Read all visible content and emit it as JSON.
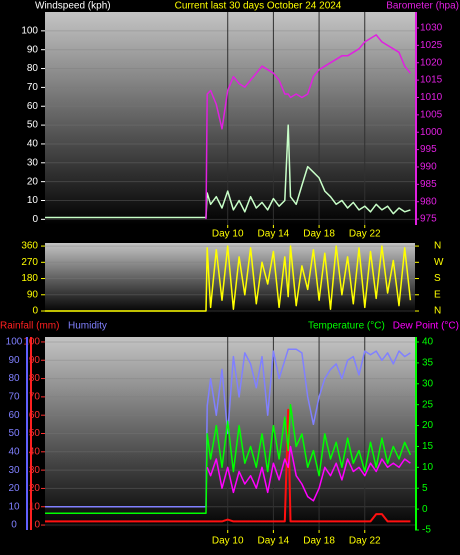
{
  "chart_data": [
    {
      "type": "line",
      "title": "Current last 30 days October 24 2024",
      "x": [
        -6,
        8.1,
        8.2,
        8.5,
        9,
        9.5,
        10,
        10.5,
        11,
        11.5,
        12,
        12.5,
        13,
        13.5,
        14,
        14.5,
        15,
        15.3,
        15.5,
        16,
        16.5,
        17,
        17.5,
        18,
        18.5,
        19,
        19.5,
        20,
        20.5,
        21,
        21.5,
        22,
        22.5,
        23,
        23.5,
        24,
        24.5,
        25,
        25.5,
        26
      ],
      "xlim": [
        -6,
        26.4
      ],
      "xticks": [
        {
          "value": 10,
          "label": "Day 10"
        },
        {
          "value": 14,
          "label": "Day 14"
        },
        {
          "value": 18,
          "label": "Day 18"
        },
        {
          "value": 22,
          "label": "Day 22"
        }
      ],
      "ylim": [
        -3,
        110
      ],
      "yticks": [
        0,
        10,
        20,
        30,
        40,
        50,
        60,
        70,
        80,
        90,
        100
      ],
      "y2lim": [
        973.3,
        1034.6
      ],
      "y2ticks": [
        975,
        980,
        985,
        990,
        995,
        1000,
        1005,
        1010,
        1015,
        1020,
        1025,
        1030
      ],
      "grid": true,
      "series": [
        {
          "name": "Windspeed (kph)",
          "color": "#c8ffc8",
          "values": [
            1,
            1,
            14,
            8,
            12,
            6,
            15,
            5,
            10,
            4,
            12,
            6,
            9,
            5,
            11,
            7,
            10,
            50,
            12,
            8,
            18,
            28,
            25,
            22,
            15,
            12,
            8,
            10,
            6,
            9,
            5,
            7,
            4,
            8,
            5,
            7,
            3,
            6,
            4,
            5
          ]
        },
        {
          "name": "Barometer (hpa)",
          "color": "#e020e0",
          "axis": "y2",
          "values": [
            null,
            975,
            1011,
            1012,
            1008,
            1001,
            1012,
            1016,
            1014,
            1013,
            1015,
            1017,
            1019,
            1018,
            1017,
            1015,
            1011,
            1011,
            1010,
            1011,
            1010,
            1011,
            1016,
            1018,
            1019,
            1020,
            1021,
            1022,
            1022,
            1023,
            1024,
            1026,
            1027,
            1028,
            1026,
            1025,
            1024,
            1023,
            1019,
            1017
          ]
        }
      ]
    },
    {
      "type": "line",
      "x": [
        -6,
        8.1,
        8.2,
        8.5,
        9,
        9.5,
        10,
        10.5,
        11,
        11.5,
        12,
        12.5,
        13,
        13.5,
        14,
        14.5,
        15,
        15.3,
        15.5,
        16,
        16.5,
        17,
        17.5,
        18,
        18.5,
        19,
        19.5,
        20,
        20.5,
        21,
        21.5,
        22,
        22.5,
        23,
        23.5,
        24,
        24.5,
        25,
        25.5,
        26
      ],
      "xlim": [
        -6,
        26.4
      ],
      "ylim": [
        -11,
        377
      ],
      "yticks": [
        0,
        90,
        180,
        270,
        360
      ],
      "y2lim": [
        -11,
        377
      ],
      "y2ticks": [
        {
          "value": 360,
          "label": "N"
        },
        {
          "value": 270,
          "label": "W"
        },
        {
          "value": 180,
          "label": "S"
        },
        {
          "value": 90,
          "label": "E"
        },
        {
          "value": 0,
          "label": "N"
        }
      ],
      "grid": true,
      "series": [
        {
          "color": "#ffff00",
          "values": [
            0,
            0,
            350,
            20,
            340,
            60,
            360,
            10,
            300,
            90,
            350,
            40,
            270,
            150,
            330,
            20,
            300,
            80,
            360,
            30,
            250,
            120,
            340,
            60,
            320,
            10,
            360,
            90,
            300,
            40,
            350,
            20,
            330,
            70,
            360,
            100,
            280,
            30,
            350,
            60
          ]
        }
      ]
    },
    {
      "type": "line",
      "x": [
        -6,
        8.1,
        8.2,
        8.5,
        9,
        9.5,
        10,
        10.5,
        11,
        11.5,
        12,
        12.5,
        13,
        13.5,
        14,
        14.5,
        15,
        15.3,
        15.5,
        16,
        16.5,
        17,
        17.5,
        18,
        18.5,
        19,
        19.5,
        20,
        20.5,
        21,
        21.5,
        22,
        22.5,
        23,
        23.5,
        24,
        24.5,
        25,
        25.5,
        26
      ],
      "xlim": [
        -6,
        26.4
      ],
      "xticks": [
        {
          "value": 10,
          "label": "Day 10"
        },
        {
          "value": 14,
          "label": "Day 14"
        },
        {
          "value": 18,
          "label": "Day 18"
        },
        {
          "value": 22,
          "label": "Day 22"
        }
      ],
      "ylim": [
        -2.7,
        102.7
      ],
      "yticks": [
        0,
        10,
        20,
        30,
        40,
        50,
        60,
        70,
        80,
        90,
        100
      ],
      "y2lim": [
        -5,
        41.2
      ],
      "y2ticks": [
        -5,
        0,
        5,
        10,
        15,
        20,
        25,
        30,
        35,
        40
      ],
      "grid": true,
      "series": [
        {
          "name": "Rainfall (mm)",
          "color": "#ff1010",
          "values": [
            2,
            2,
            2,
            2,
            2,
            2,
            3,
            2,
            2,
            2,
            2,
            2,
            2,
            2,
            2,
            2,
            2,
            63,
            2,
            2,
            2,
            2,
            2,
            2,
            2,
            2,
            2,
            2,
            2,
            2,
            2,
            2,
            2,
            6,
            6,
            2,
            2,
            2,
            2,
            2
          ]
        },
        {
          "name": "Humidity",
          "color": "#8080ff",
          "values": [
            10,
            10,
            65,
            80,
            60,
            85,
            50,
            92,
            70,
            94,
            88,
            75,
            92,
            60,
            95,
            80,
            90,
            96,
            96,
            96,
            94,
            70,
            55,
            70,
            80,
            85,
            88,
            80,
            90,
            92,
            82,
            95,
            93,
            95,
            90,
            94,
            88,
            95,
            92,
            94
          ]
        },
        {
          "name": "Temperature (°C)",
          "color": "#00ff00",
          "axis": "y2",
          "values": [
            -1,
            -1,
            18,
            12,
            20,
            10,
            21,
            9,
            20,
            11,
            15,
            10,
            18,
            9,
            20,
            12,
            22,
            14,
            25,
            15,
            18,
            10,
            14,
            8,
            18,
            12,
            16,
            10,
            17,
            11,
            14,
            9,
            16,
            10,
            17,
            11,
            15,
            12,
            16,
            13
          ]
        },
        {
          "name": "Dew Point (°C)",
          "color": "#ff00ff",
          "axis": "y2",
          "values": [
            null,
            null,
            10,
            8,
            12,
            5,
            10,
            4,
            9,
            6,
            8,
            5,
            10,
            4,
            11,
            7,
            12,
            10,
            15,
            8,
            6,
            3,
            2,
            5,
            10,
            8,
            11,
            7,
            12,
            9,
            10,
            8,
            11,
            9,
            12,
            10,
            11,
            10,
            12,
            11
          ]
        }
      ]
    }
  ]
}
